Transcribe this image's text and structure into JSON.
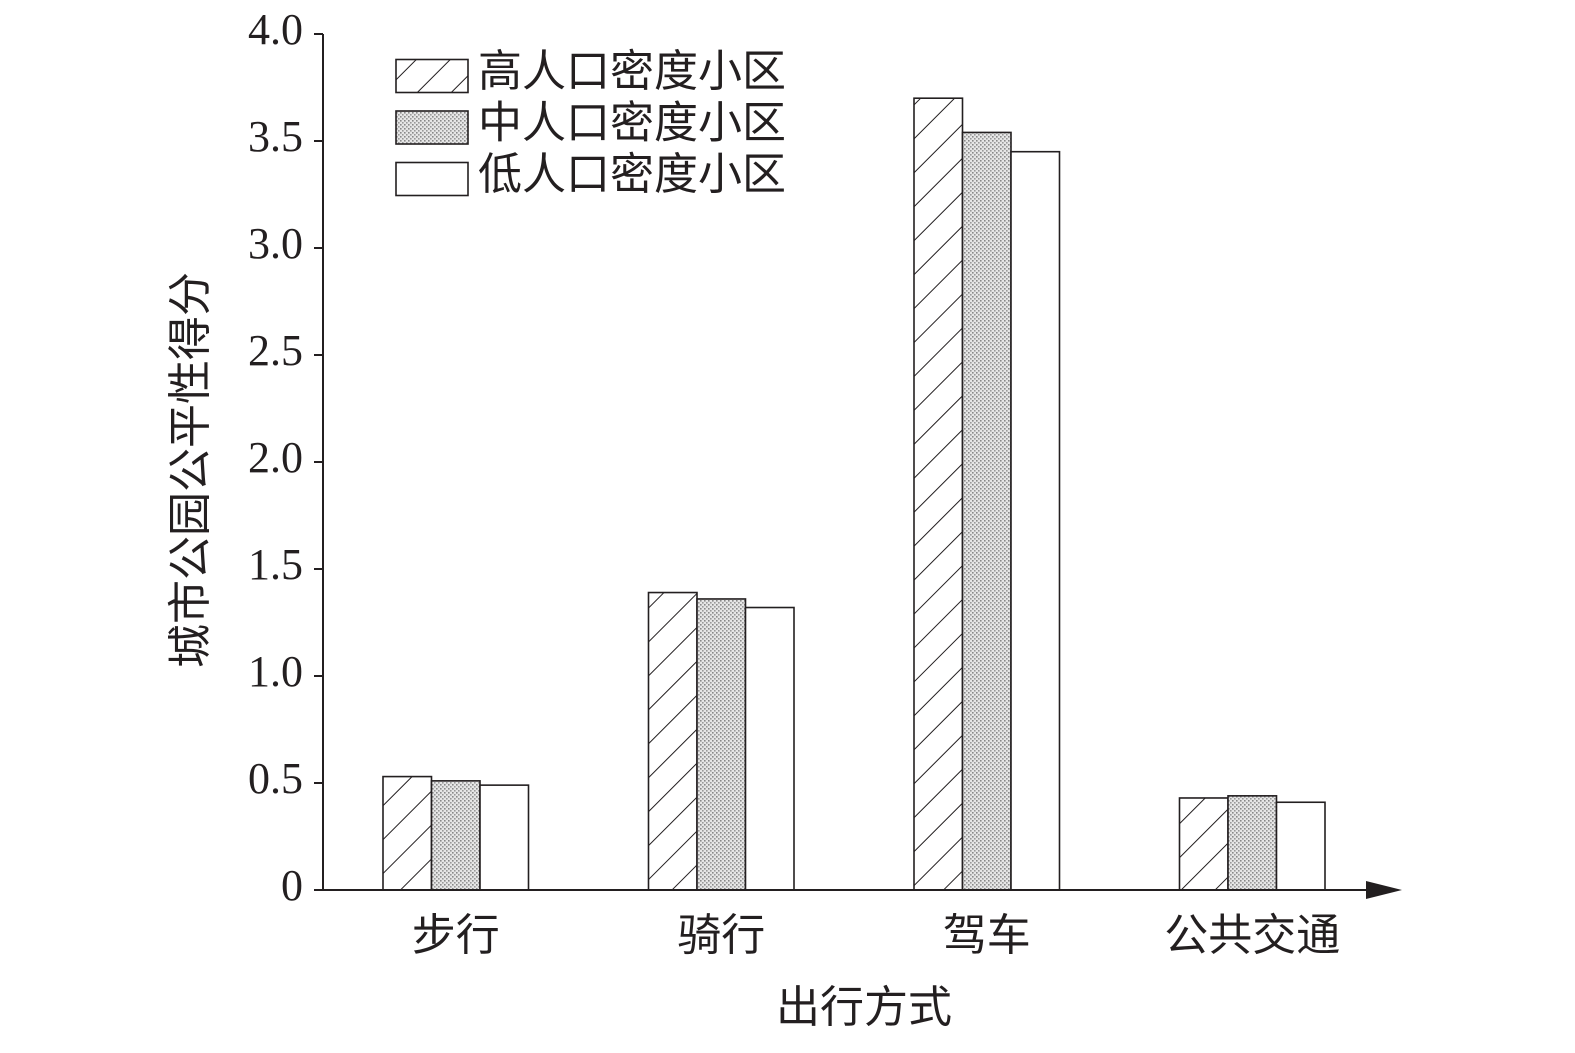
{
  "chart_data": {
    "type": "bar",
    "x_label": "出行方式",
    "y_label": "城市公园公平性得分",
    "categories": [
      "步行",
      "骑行",
      "驾车",
      "公共交通"
    ],
    "series": [
      {
        "name": "高人口密度小区",
        "color": "#ffffff",
        "pattern": "hatch",
        "values": [
          0.53,
          1.39,
          3.7,
          0.43
        ]
      },
      {
        "name": "中人口密度小区",
        "color": "#ffffff",
        "pattern": "dots",
        "values": [
          0.51,
          1.36,
          3.54,
          0.44
        ]
      },
      {
        "name": "低人口密度小区",
        "color": "#ffffff",
        "pattern": "none",
        "values": [
          0.49,
          1.32,
          3.45,
          0.41
        ]
      }
    ],
    "ylim": [
      0,
      4
    ],
    "yticks": [
      0,
      0.5,
      {
        "value": 1,
        "label": "1.0"
      },
      1.5,
      {
        "value": 2,
        "label": "2.0"
      },
      2.5,
      {
        "value": 3,
        "label": "3.0"
      },
      3.5,
      {
        "value": 4,
        "label": "4.0"
      }
    ],
    "legend": "top-left"
  }
}
